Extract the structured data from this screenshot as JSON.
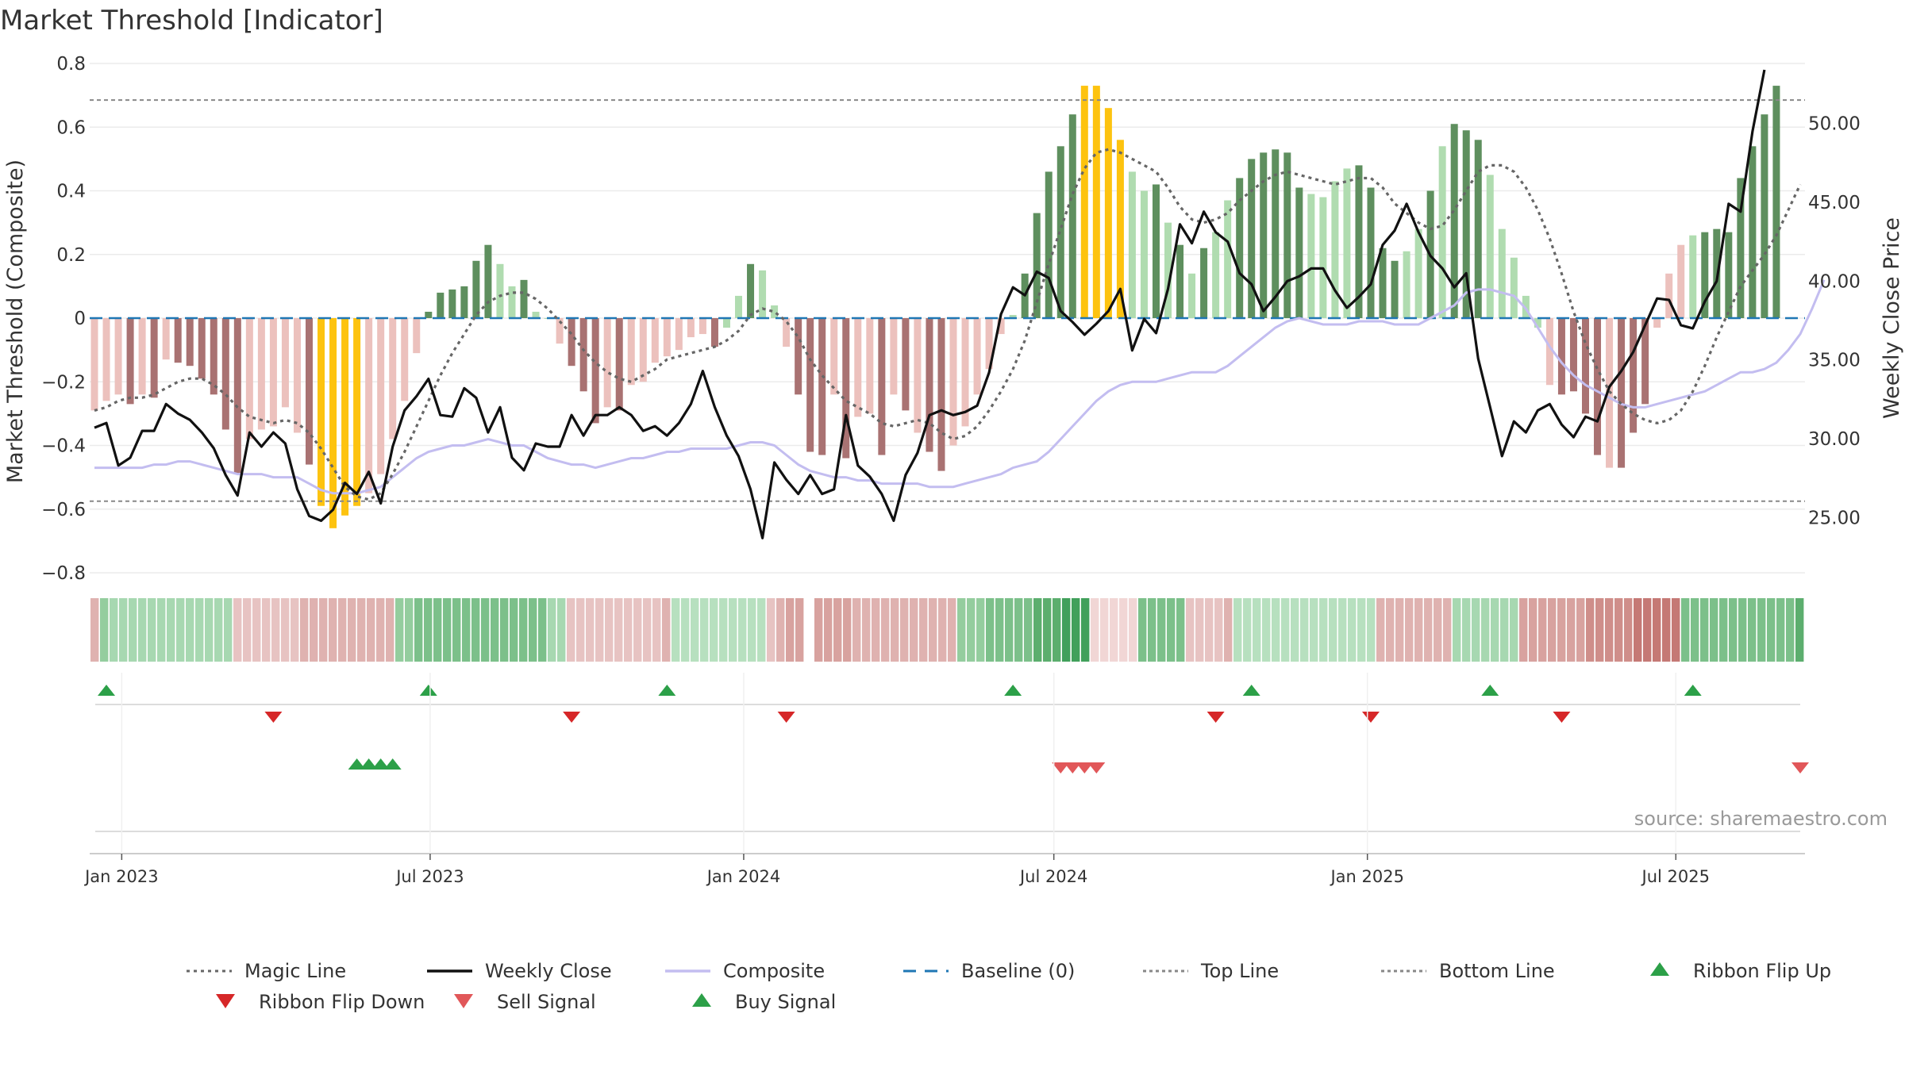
{
  "title": "Market Threshold [Indicator]",
  "source": "source: sharemaestro.com",
  "chart_data": {
    "type": "bar",
    "title": "Market Threshold [Indicator]",
    "ylabel_left": "Market Threshold (Composite)",
    "ylabel_right": "Weekly Close Price",
    "ylim_left": [
      -0.8,
      0.8
    ],
    "yticks_left": [
      0.8,
      0.6,
      0.4,
      0.2,
      0,
      -0.2,
      -0.4,
      -0.6,
      -0.8
    ],
    "ytick_labels_left": [
      "0.8",
      "0.6",
      "0.4",
      "0.2",
      "0",
      "−0.2",
      "−0.4",
      "−0.6",
      "−0.8"
    ],
    "ylim_right": [
      21.5,
      53.8
    ],
    "yticks_right": [
      50,
      45,
      40,
      35,
      30,
      25
    ],
    "ytick_labels_right": [
      "50.00",
      "45.00",
      "40.00",
      "35.00",
      "30.00",
      "25.00"
    ],
    "x_start_week": "2022-12-16",
    "x_end_week": "2025-09-12",
    "x_ticks": [
      "2023-01-01",
      "2023-07-01",
      "2024-01-01",
      "2024-07-01",
      "2025-01-01",
      "2025-07-01"
    ],
    "x_tick_labels": [
      "Jan 2023",
      "Jul 2023",
      "Jan 2024",
      "Jul 2024",
      "Jan 2025",
      "Jul 2025"
    ],
    "grid": true,
    "legend_position": "bottom",
    "top_line": 0.685,
    "bottom_line": -0.575,
    "baseline": 0,
    "composite_bars": [
      -0.29,
      -0.26,
      -0.24,
      -0.27,
      -0.24,
      -0.25,
      -0.13,
      -0.14,
      -0.15,
      -0.19,
      -0.24,
      -0.35,
      -0.49,
      -0.38,
      -0.35,
      -0.34,
      -0.28,
      -0.36,
      -0.46,
      -0.59,
      -0.66,
      -0.62,
      -0.59,
      -0.55,
      -0.49,
      -0.38,
      -0.26,
      -0.11,
      0.02,
      0.08,
      0.09,
      0.1,
      0.18,
      0.23,
      0.17,
      0.1,
      0.12,
      0.02,
      0,
      -0.08,
      -0.15,
      -0.23,
      -0.33,
      -0.28,
      -0.29,
      -0.21,
      -0.2,
      -0.14,
      -0.12,
      -0.1,
      -0.06,
      -0.05,
      -0.09,
      -0.03,
      0.07,
      0.17,
      0.15,
      0.04,
      -0.09,
      -0.24,
      -0.42,
      -0.43,
      -0.24,
      -0.44,
      -0.31,
      -0.3,
      -0.43,
      -0.24,
      -0.29,
      -0.36,
      -0.42,
      -0.48,
      -0.4,
      -0.34,
      -0.24,
      -0.16,
      -0.05,
      0.01,
      0.14,
      0.33,
      0.46,
      0.54,
      0.64,
      0.73,
      0.73,
      0.66,
      0.56,
      0.46,
      0.4,
      0.42,
      0.3,
      0.23,
      0.14,
      0.22,
      0.27,
      0.37,
      0.44,
      0.5,
      0.52,
      0.53,
      0.52,
      0.41,
      0.39,
      0.38,
      0.43,
      0.47,
      0.48,
      0.41,
      0.22,
      0.18,
      0.21,
      0.28,
      0.4,
      0.54,
      0.61,
      0.59,
      0.56,
      0.45,
      0.28,
      0.19,
      0.07,
      -0.03,
      -0.21,
      -0.24,
      -0.23,
      -0.3,
      -0.43,
      -0.47,
      -0.47,
      -0.36,
      -0.27,
      -0.03,
      0.14,
      0.23,
      0.26,
      0.27,
      0.28,
      0.27,
      0.44,
      0.54,
      0.64,
      0.73
    ],
    "bar_styles": [
      "R",
      "R",
      "R",
      "D",
      "R",
      "D",
      "R",
      "D",
      "D",
      "D",
      "D",
      "D",
      "D",
      "R",
      "R",
      "R",
      "R",
      "R",
      "D",
      "Y",
      "Y",
      "Y",
      "Y",
      "R",
      "R",
      "R",
      "R",
      "R",
      "G",
      "G",
      "G",
      "G",
      "G",
      "G",
      "L",
      "L",
      "G",
      "L",
      "L",
      "R",
      "D",
      "D",
      "D",
      "R",
      "D",
      "R",
      "R",
      "R",
      "R",
      "R",
      "R",
      "R",
      "D",
      "L",
      "L",
      "G",
      "L",
      "L",
      "R",
      "D",
      "D",
      "D",
      "R",
      "D",
      "R",
      "R",
      "D",
      "R",
      "D",
      "R",
      "D",
      "D",
      "R",
      "R",
      "R",
      "R",
      "R",
      "L",
      "G",
      "G",
      "G",
      "G",
      "G",
      "Y",
      "Y",
      "Y",
      "Y",
      "L",
      "L",
      "G",
      "L",
      "G",
      "L",
      "G",
      "L",
      "L",
      "G",
      "G",
      "G",
      "G",
      "G",
      "G",
      "L",
      "L",
      "L",
      "L",
      "G",
      "G",
      "G",
      "G",
      "L",
      "L",
      "G",
      "L",
      "G",
      "G",
      "G",
      "L",
      "L",
      "L",
      "L",
      "L",
      "R",
      "D",
      "D",
      "D",
      "D",
      "R",
      "D",
      "D",
      "D",
      "R",
      "R",
      "R",
      "L",
      "G",
      "G",
      "G",
      "G",
      "G",
      "G",
      "G",
      "G",
      "G",
      "Y"
    ],
    "magic_line": [
      -0.29,
      -0.28,
      -0.26,
      -0.25,
      -0.25,
      -0.24,
      -0.22,
      -0.2,
      -0.19,
      -0.19,
      -0.21,
      -0.24,
      -0.28,
      -0.31,
      -0.32,
      -0.33,
      -0.32,
      -0.33,
      -0.36,
      -0.41,
      -0.47,
      -0.53,
      -0.56,
      -0.57,
      -0.55,
      -0.49,
      -0.42,
      -0.34,
      -0.26,
      -0.18,
      -0.11,
      -0.05,
      0.01,
      0.05,
      0.07,
      0.08,
      0.08,
      0.06,
      0.03,
      -0.01,
      -0.05,
      -0.1,
      -0.14,
      -0.17,
      -0.19,
      -0.2,
      -0.18,
      -0.16,
      -0.13,
      -0.12,
      -0.11,
      -0.1,
      -0.09,
      -0.07,
      -0.04,
      0.01,
      0.03,
      0.02,
      -0.01,
      -0.06,
      -0.13,
      -0.18,
      -0.22,
      -0.26,
      -0.28,
      -0.3,
      -0.33,
      -0.34,
      -0.33,
      -0.32,
      -0.33,
      -0.36,
      -0.38,
      -0.37,
      -0.34,
      -0.29,
      -0.23,
      -0.16,
      -0.07,
      0.05,
      0.17,
      0.28,
      0.39,
      0.47,
      0.52,
      0.53,
      0.52,
      0.5,
      0.48,
      0.46,
      0.41,
      0.35,
      0.31,
      0.3,
      0.31,
      0.33,
      0.37,
      0.4,
      0.43,
      0.45,
      0.46,
      0.45,
      0.44,
      0.43,
      0.42,
      0.43,
      0.44,
      0.44,
      0.41,
      0.36,
      0.33,
      0.3,
      0.28,
      0.29,
      0.34,
      0.4,
      0.46,
      0.48,
      0.48,
      0.46,
      0.41,
      0.34,
      0.25,
      0.14,
      0.02,
      -0.08,
      -0.16,
      -0.23,
      -0.27,
      -0.3,
      -0.32,
      -0.33,
      -0.32,
      -0.29,
      -0.23,
      -0.15,
      -0.06,
      0.02,
      0.1,
      0.15,
      0.2,
      0.26,
      0.34,
      0.42
    ],
    "composite_line": [
      -0.47,
      -0.47,
      -0.47,
      -0.47,
      -0.47,
      -0.46,
      -0.46,
      -0.45,
      -0.45,
      -0.46,
      -0.47,
      -0.48,
      -0.49,
      -0.49,
      -0.49,
      -0.5,
      -0.5,
      -0.5,
      -0.52,
      -0.54,
      -0.55,
      -0.55,
      -0.55,
      -0.54,
      -0.53,
      -0.5,
      -0.47,
      -0.44,
      -0.42,
      -0.41,
      -0.4,
      -0.4,
      -0.39,
      -0.38,
      -0.39,
      -0.4,
      -0.4,
      -0.42,
      -0.44,
      -0.45,
      -0.46,
      -0.46,
      -0.47,
      -0.46,
      -0.45,
      -0.44,
      -0.44,
      -0.43,
      -0.42,
      -0.42,
      -0.41,
      -0.41,
      -0.41,
      -0.41,
      -0.4,
      -0.39,
      -0.39,
      -0.4,
      -0.43,
      -0.46,
      -0.48,
      -0.49,
      -0.5,
      -0.5,
      -0.51,
      -0.51,
      -0.52,
      -0.52,
      -0.52,
      -0.52,
      -0.53,
      -0.53,
      -0.53,
      -0.52,
      -0.51,
      -0.5,
      -0.49,
      -0.47,
      -0.46,
      -0.45,
      -0.42,
      -0.38,
      -0.34,
      -0.3,
      -0.26,
      -0.23,
      -0.21,
      -0.2,
      -0.2,
      -0.2,
      -0.19,
      -0.18,
      -0.17,
      -0.17,
      -0.17,
      -0.15,
      -0.12,
      -0.09,
      -0.06,
      -0.03,
      -0.01,
      0,
      -0.01,
      -0.02,
      -0.02,
      -0.02,
      -0.01,
      -0.01,
      -0.01,
      -0.02,
      -0.02,
      -0.02,
      0,
      0.02,
      0.04,
      0.08,
      0.09,
      0.09,
      0.08,
      0.07,
      0.03,
      -0.03,
      -0.09,
      -0.14,
      -0.18,
      -0.21,
      -0.23,
      -0.25,
      -0.27,
      -0.28,
      -0.28,
      -0.27,
      -0.26,
      -0.25,
      -0.24,
      -0.23,
      -0.21,
      -0.19,
      -0.17,
      -0.17,
      -0.16,
      -0.14,
      -0.1,
      -0.05,
      0.03,
      0.12
    ],
    "weekly_close": [
      30.7,
      31,
      28.3,
      28.8,
      30.5,
      30.5,
      32.2,
      31.6,
      31.2,
      30.4,
      29.4,
      27.7,
      26.4,
      30.4,
      29.5,
      30.4,
      29.7,
      26.8,
      25.1,
      24.8,
      25.5,
      27.2,
      26.5,
      27.9,
      25.9,
      29.5,
      31.8,
      32.7,
      33.8,
      31.5,
      31.4,
      33.2,
      32.6,
      30.4,
      32,
      28.8,
      28,
      29.7,
      29.5,
      29.5,
      31.5,
      30.2,
      31.5,
      31.5,
      32,
      31.5,
      30.5,
      30.8,
      30.2,
      31,
      32.2,
      34.3,
      32,
      30.2,
      28.9,
      26.8,
      23.7,
      28.5,
      27.4,
      26.5,
      27.7,
      26.5,
      26.8,
      31.5,
      28.3,
      27.6,
      26.5,
      24.8,
      27.7,
      29.1,
      31.5,
      31.8,
      31.5,
      31.7,
      32.1,
      34.2,
      37.9,
      39.6,
      39.1,
      40.6,
      40.2,
      38.1,
      37.4,
      36.6,
      37.3,
      38.1,
      39.5,
      35.6,
      37.6,
      36.7,
      39.5,
      43.6,
      42.4,
      44.4,
      43.1,
      42.5,
      40.5,
      39.8,
      38.1,
      39,
      40,
      40.3,
      40.8,
      40.8,
      39.4,
      38.3,
      39,
      39.8,
      42.3,
      43.2,
      44.9,
      43.1,
      41.6,
      40.8,
      39.6,
      40.5,
      35.1,
      32,
      28.9,
      31.1,
      30.4,
      31.8,
      32.2,
      30.9,
      30.1,
      31.4,
      31.1,
      33.3,
      34.3,
      35.5,
      37.2,
      38.9,
      38.8,
      37.2,
      37,
      38.7,
      40,
      44.9,
      44.4,
      49.5,
      53.4
    ],
    "ribbon": {
      "palette": [
        "#b7e0bf",
        "#a7d8b1",
        "#94cd9e",
        "#7cc08a",
        "#5cae6e",
        "#41a05b",
        "#f1d6d5",
        "#e7c3c2",
        "#dfb2b0",
        "#d8a29f",
        "#cf8e8a",
        "#c57975"
      ],
      "values": [
        8,
        2,
        1,
        1,
        1,
        1,
        1,
        1,
        1,
        1,
        1,
        1,
        1,
        1,
        1,
        7,
        7,
        7,
        7,
        7,
        7,
        7,
        8,
        8,
        8,
        8,
        8,
        8,
        8,
        8,
        8,
        8,
        2,
        2,
        3,
        3,
        3,
        3,
        3,
        3,
        3,
        3,
        3,
        3,
        3,
        3,
        3,
        3,
        1,
        1,
        7,
        7,
        7,
        7,
        7,
        7,
        7,
        7,
        7,
        7,
        8,
        0,
        0,
        0,
        0,
        0,
        0,
        0,
        0,
        0,
        0,
        7,
        8,
        9,
        9,
        -1,
        9,
        9,
        9,
        9,
        8,
        8,
        8,
        8,
        8,
        8,
        8,
        8,
        8,
        8,
        8,
        2,
        2,
        2,
        3,
        3,
        3,
        3,
        3,
        4,
        4,
        4,
        5,
        5,
        5,
        6,
        6,
        6,
        6,
        6,
        3,
        3,
        3,
        3,
        3,
        7,
        7,
        7,
        7,
        8,
        0,
        0,
        0,
        0,
        0,
        0,
        0,
        0,
        0,
        0,
        0,
        0,
        0,
        0,
        0,
        8,
        8,
        8,
        8,
        8,
        8,
        8,
        8,
        1,
        1,
        1,
        1,
        1,
        1,
        1,
        9,
        9,
        9,
        9,
        9,
        9,
        9,
        10,
        10,
        10,
        10,
        10,
        11,
        11,
        11,
        11,
        11,
        3,
        3,
        3,
        3,
        3,
        3,
        3,
        3,
        3,
        3,
        3,
        3,
        4
      ]
    },
    "ribbon_flip_up_dates": [
      "2022-12-23",
      "2023-06-30",
      "2023-11-17",
      "2024-06-07",
      "2024-10-25",
      "2025-03-14",
      "2025-07-11"
    ],
    "ribbon_flip_down_dates": [
      "2023-03-31",
      "2023-09-22",
      "2024-01-26",
      "2024-10-04",
      "2025-01-03",
      "2025-04-25"
    ],
    "buy_signal_dates": [
      "2023-05-19",
      "2023-05-26",
      "2023-06-02",
      "2023-06-09"
    ],
    "sell_signal_dates": [
      "2024-07-05",
      "2024-07-12",
      "2024-07-19",
      "2024-07-26",
      "2025-09-12"
    ],
    "series": [
      {
        "name": "Magic Line",
        "color": "#666666",
        "style": "dotted"
      },
      {
        "name": "Weekly Close",
        "color": "#111111",
        "style": "solid"
      },
      {
        "name": "Composite",
        "color": "#c3bdf0",
        "style": "solid"
      },
      {
        "name": "Baseline (0)",
        "color": "#1f77b4",
        "style": "dashed"
      },
      {
        "name": "Top Line",
        "color": "#888888",
        "style": "dotted"
      },
      {
        "name": "Bottom Line",
        "color": "#888888",
        "style": "dotted"
      },
      {
        "name": "Ribbon Flip Up",
        "color": "#2ca048",
        "marker": "triangle-up"
      },
      {
        "name": "Ribbon Flip Down",
        "color": "#d62728",
        "marker": "triangle-down"
      },
      {
        "name": "Sell Signal",
        "color": "#e15759",
        "marker": "triangle-down"
      },
      {
        "name": "Buy Signal",
        "color": "#2ca048",
        "marker": "triangle-up"
      }
    ],
    "colors": {
      "bar_light_red": "#ecc1bd",
      "bar_dark_red": "#a97272",
      "bar_light_green": "#b0dcb0",
      "bar_dark_green": "#5e8f5e",
      "bar_extreme": "#fdc30f",
      "up_marker": "#2ca048",
      "down_marker": "#d62728",
      "sell_marker": "#e15759"
    }
  }
}
